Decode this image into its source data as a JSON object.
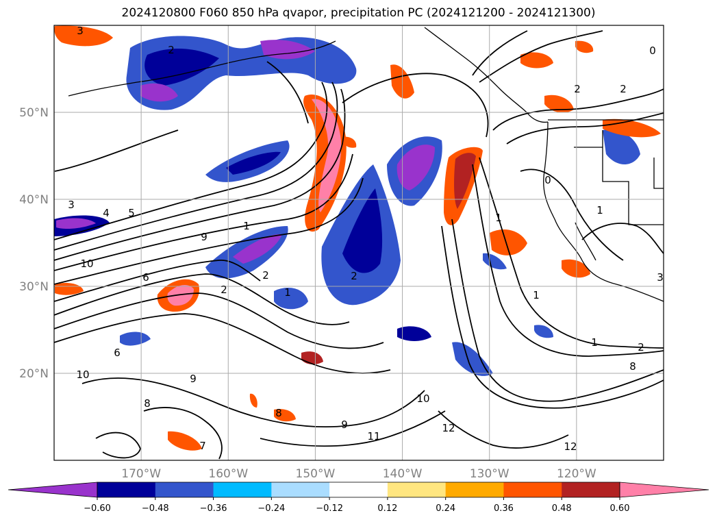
{
  "title": "2024120800 F060 850 hPa qvapor, precipitation PC (2024121200 - 2024121300)",
  "map": {
    "lon_range": [
      -180,
      -110
    ],
    "lat_range": [
      10,
      60
    ],
    "lat_ticks": [
      {
        "value": 20,
        "label": "20°N"
      },
      {
        "value": 30,
        "label": "30°N"
      },
      {
        "value": 40,
        "label": "40°N"
      },
      {
        "value": 50,
        "label": "50°N"
      }
    ],
    "lon_ticks": [
      {
        "value": -170,
        "label": "170°W"
      },
      {
        "value": -160,
        "label": "160°W"
      },
      {
        "value": -150,
        "label": "150°W"
      },
      {
        "value": -140,
        "label": "140°W"
      },
      {
        "value": -130,
        "label": "130°W"
      },
      {
        "value": -120,
        "label": "120°W"
      }
    ],
    "grid": true,
    "contour_labels": [
      "3",
      "2",
      "5",
      "4",
      "3",
      "9",
      "10",
      "6",
      "2",
      "1",
      "2",
      "1",
      "2",
      "1",
      "10",
      "11",
      "12",
      "9",
      "8",
      "6",
      "7",
      "8",
      "9",
      "10",
      "0",
      "2",
      "2",
      "1",
      "0",
      "1",
      "3",
      "1",
      "2",
      "8",
      "12"
    ]
  },
  "colorbar": {
    "colors": [
      "#9933cc",
      "#000099",
      "#3355cc",
      "#00bbff",
      "#aaddff",
      "#ffffff",
      "#ffe680",
      "#ffaa00",
      "#ff5500",
      "#b22222",
      "#ff80a8"
    ],
    "tick_labels": [
      "−0.60",
      "−0.48",
      "−0.36",
      "−0.24",
      "−0.12",
      "0.12",
      "0.24",
      "0.36",
      "0.48",
      "0.60"
    ],
    "extend": "both"
  },
  "colors": {
    "coast": "#000000",
    "grid": "#aaaaaa",
    "tick_text": "#808080"
  }
}
